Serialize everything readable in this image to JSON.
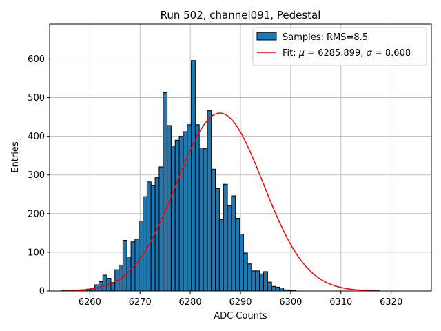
{
  "chart_data": {
    "type": "bar",
    "title": "Run 502, channel091, Pedestal",
    "xlabel": "ADC Counts",
    "ylabel": "Entries",
    "xlim": [
      6252,
      6328
    ],
    "ylim": [
      0,
      690
    ],
    "xticks": [
      6260,
      6270,
      6280,
      6290,
      6300,
      6310,
      6320
    ],
    "yticks": [
      0,
      100,
      200,
      300,
      400,
      500,
      600
    ],
    "grid": true,
    "legend_position": "top-right",
    "bar_color": "#1f77b4",
    "fit_color": "#ff0000",
    "series": [
      {
        "name": "Samples: RMS=8.5",
        "bin_width": 0.8,
        "bin_start": 6254.6,
        "values": [
          0,
          0,
          1,
          2,
          3,
          3,
          5,
          8,
          16,
          24,
          41,
          33,
          22,
          55,
          67,
          131,
          88,
          127,
          134,
          181,
          244,
          282,
          272,
          293,
          321,
          513,
          428,
          375,
          390,
          400,
          412,
          430,
          596,
          430,
          370,
          368,
          466,
          315,
          265,
          185,
          276,
          220,
          246,
          188,
          147,
          98,
          70,
          52,
          52,
          44,
          50,
          23,
          12,
          10,
          8,
          3,
          1,
          1
        ]
      }
    ],
    "legend": {
      "histogram_label": "Samples: RMS=8.5",
      "fit_label_prefix": "Fit: ",
      "fit_mu_symbol": "μ",
      "fit_mu_text": " = 6285.899, ",
      "fit_sigma_symbol": "σ",
      "fit_sigma_text": " = 8.608"
    },
    "fit": {
      "mu": 6285.899,
      "sigma": 8.608,
      "amplitude": 460,
      "x_range": [
        6254.2,
        6317.8
      ]
    }
  }
}
